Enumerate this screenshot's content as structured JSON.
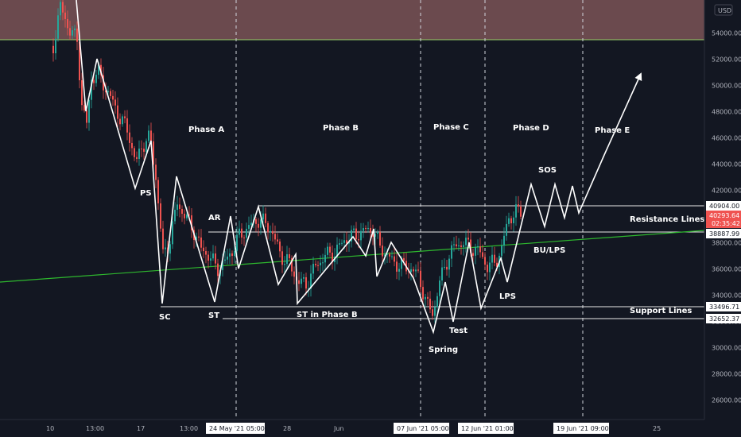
{
  "currency": "USD",
  "chart_data": {
    "type": "candlestick",
    "ylim": [
      24500,
      56500
    ],
    "y_ticks": [
      54000,
      52000,
      50000,
      48000,
      46000,
      44000,
      42000,
      40000,
      38000,
      36000,
      34000,
      32000,
      30000,
      28000,
      26000
    ],
    "x_tick_labels": [
      "10",
      "13:00",
      "17",
      "13:00",
      "28",
      "Jun",
      "25"
    ],
    "x_box_labels": [
      "24 May '21   05:00",
      "07 Jun '21   05:00",
      "12 Jun '21   01:00",
      "19 Jun '21   09:00"
    ],
    "price_labels": [
      {
        "value": "40904.00",
        "kind": "white"
      },
      {
        "value": "40293.64",
        "sub": "02:35:42",
        "kind": "red"
      },
      {
        "value": "38887.99",
        "kind": "white"
      },
      {
        "value": "33496.71",
        "kind": "white"
      },
      {
        "value": "32652.37",
        "kind": "white"
      }
    ],
    "resistance_zone": [
      53000,
      56500
    ],
    "horizontal_lines": [
      40904,
      38887.99,
      33496.71,
      32652.37
    ],
    "phases": [
      "Phase A",
      "Phase B",
      "Phase C",
      "Phase D",
      "Phase E"
    ],
    "annotations": [
      "PS",
      "SC",
      "AR",
      "ST",
      "ST in Phase B",
      "Spring",
      "Test",
      "LPS",
      "BU/LPS",
      "SOS",
      "Resistance Lines",
      "Support Lines"
    ],
    "colors": {
      "background": "#131722",
      "up": "#26a69a",
      "down": "#ef5350",
      "zone": "#6b4a4e",
      "trend": "#2eb82e",
      "zigzag": "#ffffff"
    }
  }
}
